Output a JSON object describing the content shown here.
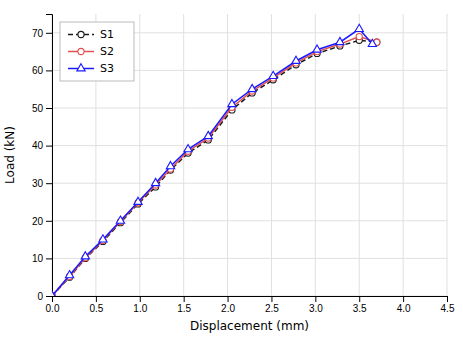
{
  "chart_data": {
    "type": "line",
    "xlabel": "Displacement (mm)",
    "ylabel": "Load (kN)",
    "xlim": [
      0,
      4.5
    ],
    "ylim": [
      0,
      75
    ],
    "xticks": [
      {
        "value": 0.0,
        "label": "0.0"
      },
      0.5,
      {
        "value": 1.0,
        "label": "1.0"
      },
      1.5,
      {
        "value": 2.0,
        "label": "2.0"
      },
      2.5,
      {
        "value": 3.0,
        "label": "3.0"
      },
      3.5,
      {
        "value": 4.0,
        "label": "4.0"
      },
      4.5
    ],
    "yticks": [
      0,
      10,
      20,
      30,
      40,
      50,
      60,
      70
    ],
    "grid": true,
    "legend": "upper left",
    "series": [
      {
        "name": "S1",
        "color": "#1a1a1a",
        "line_style": "dashed",
        "marker": "circle",
        "x": [
          0.0,
          0.2,
          0.38,
          0.58,
          0.78,
          0.98,
          1.18,
          1.35,
          1.55,
          1.78,
          2.05,
          2.28,
          2.52,
          2.78,
          3.02,
          3.28,
          3.5,
          3.7
        ],
        "values": [
          0.0,
          5.0,
          10.0,
          14.5,
          19.5,
          24.5,
          29.0,
          33.5,
          38.0,
          41.5,
          49.5,
          54.0,
          57.5,
          61.5,
          64.5,
          66.5,
          68.0,
          67.5
        ]
      },
      {
        "name": "S2",
        "color": "#e05050",
        "line_style": "solid",
        "marker": "circle",
        "x": [
          0.0,
          0.2,
          0.38,
          0.58,
          0.78,
          0.98,
          1.18,
          1.35,
          1.55,
          1.78,
          2.05,
          2.28,
          2.52,
          2.78,
          3.02,
          3.28,
          3.5,
          3.7
        ],
        "values": [
          0.0,
          5.2,
          10.2,
          14.8,
          19.8,
          24.8,
          29.5,
          33.8,
          38.5,
          42.0,
          50.2,
          54.5,
          58.0,
          62.0,
          65.0,
          67.0,
          69.0,
          67.5
        ]
      },
      {
        "name": "S3",
        "color": "#1a1aff",
        "line_style": "solid",
        "marker": "triangle",
        "x": [
          0.0,
          0.2,
          0.38,
          0.58,
          0.78,
          0.98,
          1.18,
          1.35,
          1.55,
          1.78,
          2.05,
          2.28,
          2.52,
          2.78,
          3.02,
          3.28,
          3.5,
          3.65
        ],
        "values": [
          0.0,
          5.5,
          10.5,
          15.0,
          20.0,
          25.0,
          30.0,
          34.5,
          39.0,
          42.5,
          51.0,
          55.0,
          58.5,
          62.5,
          65.5,
          67.5,
          71.0,
          67.0
        ]
      }
    ]
  }
}
